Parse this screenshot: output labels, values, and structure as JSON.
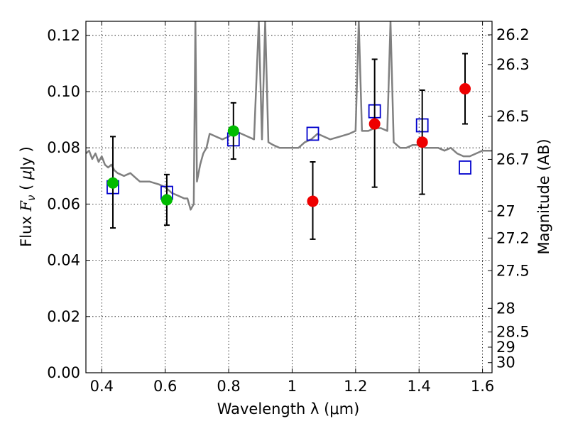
{
  "chart_data": {
    "type": "scatter",
    "title": "",
    "xlabel": "Wavelength  λ (μm)",
    "ylabel_parts": [
      "Flux  ",
      "F",
      "ν",
      "  ( ",
      "μ",
      "Jy )"
    ],
    "y2label": "Magnitude (AB)",
    "xlim": [
      0.35,
      1.63
    ],
    "ylim": [
      0.0,
      0.125
    ],
    "xticks": [
      0.4,
      0.6,
      0.8,
      1.0,
      1.2,
      1.4,
      1.6
    ],
    "xtick_labels": [
      "0.4",
      "0.6",
      "0.8",
      "1",
      "1.2",
      "1.4",
      "1.6"
    ],
    "yticks": [
      0.0,
      0.02,
      0.04,
      0.06,
      0.08,
      0.1,
      0.12
    ],
    "ytick_labels": [
      "0.00",
      "0.02",
      "0.04",
      "0.06",
      "0.08",
      "0.10",
      "0.12"
    ],
    "y2ticks": [
      {
        "label": "26.2",
        "flux": 0.1202
      },
      {
        "label": "26.3",
        "flux": 0.1096
      },
      {
        "label": "26.5",
        "flux": 0.0912
      },
      {
        "label": "26.7",
        "flux": 0.0759
      },
      {
        "label": "27",
        "flux": 0.0575
      },
      {
        "label": "27.2",
        "flux": 0.0479
      },
      {
        "label": "27.5",
        "flux": 0.0363
      },
      {
        "label": "28",
        "flux": 0.0229
      },
      {
        "label": "28.5",
        "flux": 0.0145
      },
      {
        "label": "29",
        "flux": 0.0091
      },
      {
        "label": "30",
        "flux": 0.0036
      }
    ],
    "grid": true,
    "series": [
      {
        "kind": "sed_model_line",
        "color": "#808080",
        "points": [
          [
            0.35,
            0.078
          ],
          [
            0.36,
            0.079
          ],
          [
            0.37,
            0.076
          ],
          [
            0.38,
            0.078
          ],
          [
            0.39,
            0.075
          ],
          [
            0.4,
            0.077
          ],
          [
            0.41,
            0.074
          ],
          [
            0.42,
            0.073
          ],
          [
            0.43,
            0.074
          ],
          [
            0.44,
            0.072
          ],
          [
            0.45,
            0.071
          ],
          [
            0.47,
            0.07
          ],
          [
            0.49,
            0.071
          ],
          [
            0.51,
            0.069
          ],
          [
            0.52,
            0.068
          ],
          [
            0.55,
            0.068
          ],
          [
            0.58,
            0.067
          ],
          [
            0.6,
            0.066
          ],
          [
            0.62,
            0.064
          ],
          [
            0.64,
            0.063
          ],
          [
            0.66,
            0.062
          ],
          [
            0.67,
            0.062
          ],
          [
            0.68,
            0.058
          ],
          [
            0.69,
            0.06
          ],
          [
            0.695,
            0.125
          ],
          [
            0.7,
            0.068
          ],
          [
            0.71,
            0.074
          ],
          [
            0.72,
            0.078
          ],
          [
            0.73,
            0.08
          ],
          [
            0.74,
            0.085
          ],
          [
            0.76,
            0.084
          ],
          [
            0.78,
            0.083
          ],
          [
            0.8,
            0.084
          ],
          [
            0.82,
            0.086
          ],
          [
            0.84,
            0.085
          ],
          [
            0.86,
            0.084
          ],
          [
            0.88,
            0.083
          ],
          [
            0.895,
            0.125
          ],
          [
            0.905,
            0.083
          ],
          [
            0.915,
            0.125
          ],
          [
            0.925,
            0.082
          ],
          [
            0.94,
            0.081
          ],
          [
            0.96,
            0.08
          ],
          [
            0.98,
            0.08
          ],
          [
            1.0,
            0.08
          ],
          [
            1.02,
            0.08
          ],
          [
            1.04,
            0.082
          ],
          [
            1.06,
            0.083
          ],
          [
            1.08,
            0.085
          ],
          [
            1.1,
            0.084
          ],
          [
            1.12,
            0.083
          ],
          [
            1.15,
            0.084
          ],
          [
            1.18,
            0.085
          ],
          [
            1.2,
            0.086
          ],
          [
            1.21,
            0.125
          ],
          [
            1.22,
            0.086
          ],
          [
            1.24,
            0.086
          ],
          [
            1.26,
            0.087
          ],
          [
            1.28,
            0.087
          ],
          [
            1.3,
            0.086
          ],
          [
            1.31,
            0.125
          ],
          [
            1.32,
            0.082
          ],
          [
            1.34,
            0.08
          ],
          [
            1.36,
            0.08
          ],
          [
            1.38,
            0.081
          ],
          [
            1.4,
            0.081
          ],
          [
            1.42,
            0.08
          ],
          [
            1.44,
            0.08
          ],
          [
            1.46,
            0.08
          ],
          [
            1.48,
            0.079
          ],
          [
            1.5,
            0.08
          ],
          [
            1.52,
            0.078
          ],
          [
            1.54,
            0.077
          ],
          [
            1.56,
            0.077
          ],
          [
            1.58,
            0.078
          ],
          [
            1.6,
            0.079
          ],
          [
            1.62,
            0.079
          ],
          [
            1.63,
            0.079
          ]
        ]
      },
      {
        "kind": "model_squares",
        "color": "#0000cc",
        "points": [
          [
            0.435,
            0.066
          ],
          [
            0.605,
            0.064
          ],
          [
            0.815,
            0.083
          ],
          [
            1.065,
            0.085
          ],
          [
            1.26,
            0.093
          ],
          [
            1.41,
            0.088
          ],
          [
            1.545,
            0.073
          ]
        ]
      },
      {
        "kind": "observed_green",
        "color": "#00bb00",
        "points": [
          {
            "x": 0.435,
            "y": 0.0675,
            "err_low": 0.0515,
            "err_high": 0.084
          },
          {
            "x": 0.605,
            "y": 0.0615,
            "err_low": 0.0525,
            "err_high": 0.0705
          },
          {
            "x": 0.815,
            "y": 0.086,
            "err_low": 0.076,
            "err_high": 0.096
          }
        ]
      },
      {
        "kind": "observed_red",
        "color": "#ee0000",
        "points": [
          {
            "x": 1.065,
            "y": 0.061,
            "err_low": 0.0475,
            "err_high": 0.075
          },
          {
            "x": 1.26,
            "y": 0.0885,
            "err_low": 0.066,
            "err_high": 0.1115
          },
          {
            "x": 1.41,
            "y": 0.082,
            "err_low": 0.0635,
            "err_high": 0.1005
          },
          {
            "x": 1.545,
            "y": 0.101,
            "err_low": 0.0885,
            "err_high": 0.1135
          }
        ]
      }
    ]
  }
}
